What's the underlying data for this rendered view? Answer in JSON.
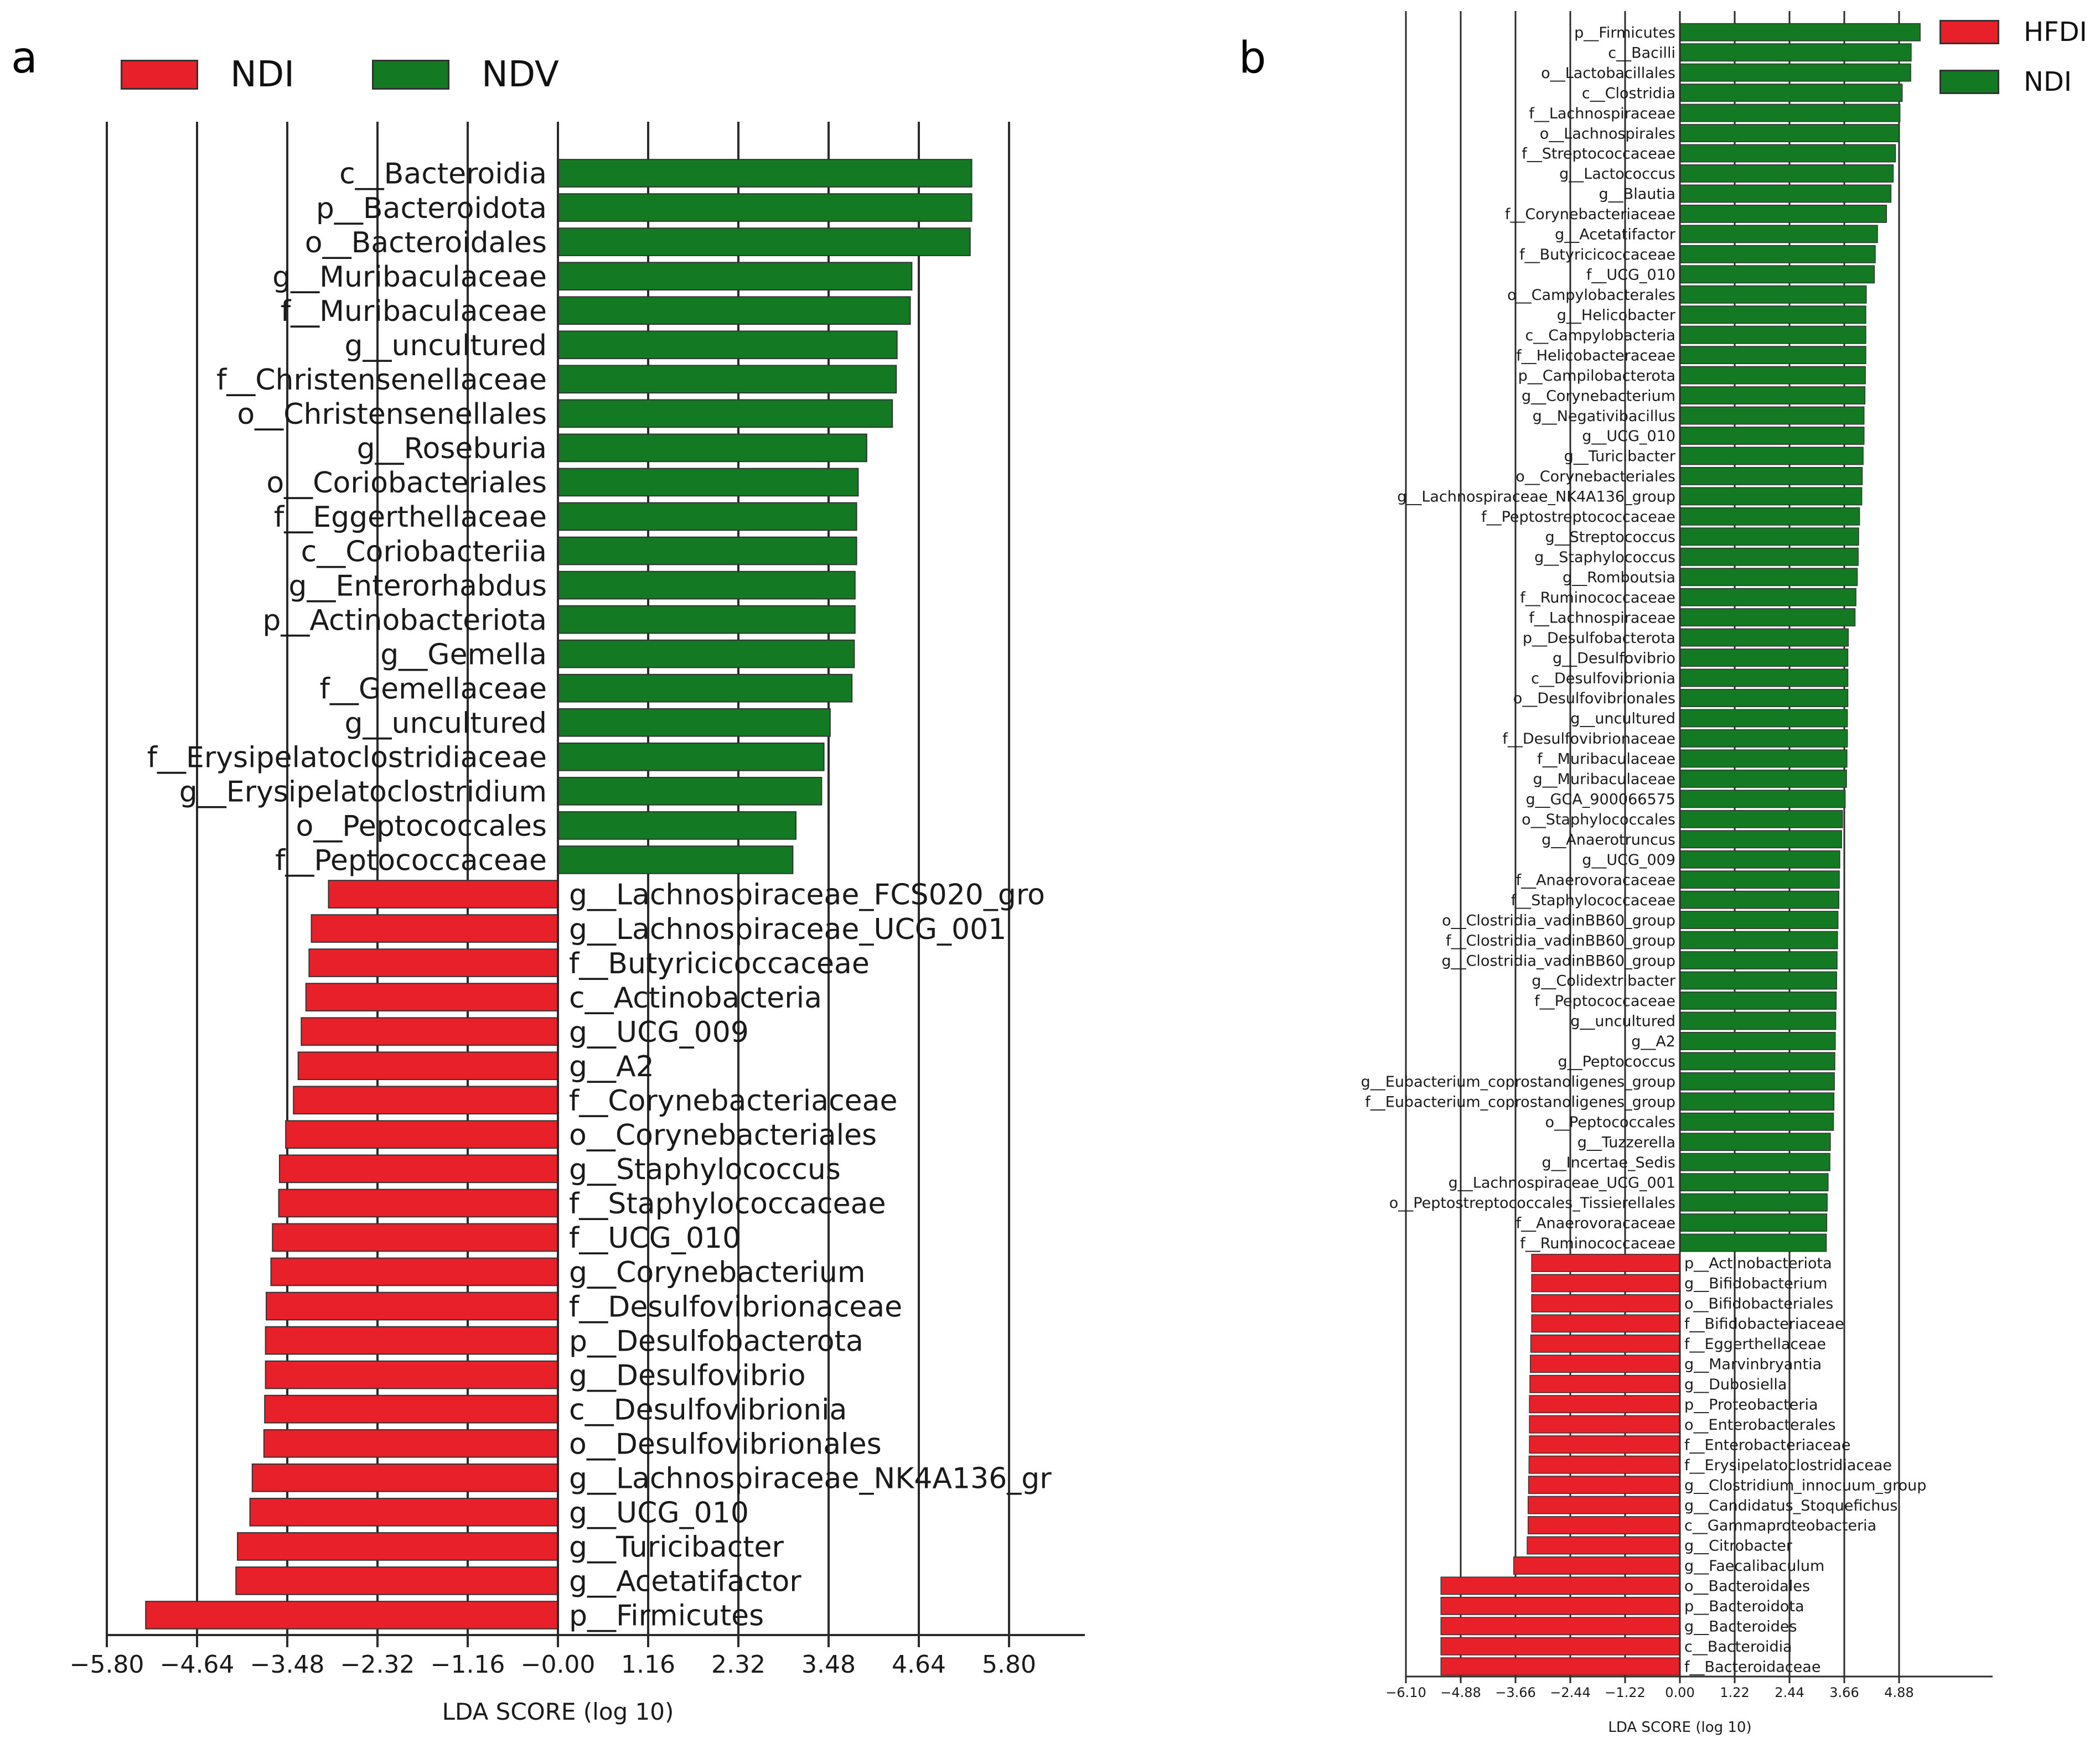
{
  "panels": {
    "a": {
      "letter": "a",
      "legend": [
        {
          "label": "NDI",
          "color": "#e8202a"
        },
        {
          "label": "NDV",
          "color": "#137a23"
        }
      ],
      "xlabel": "LDA SCORE (log 10)",
      "tick_labels": [
        "−5.80",
        "−4.64",
        "−3.48",
        "−2.32",
        "−1.16",
        "−0.00",
        "1.16",
        "2.32",
        "3.48",
        "4.64",
        "5.80"
      ]
    },
    "b": {
      "letter": "b",
      "legend": [
        {
          "label": "HFDI",
          "color": "#e8202a"
        },
        {
          "label": "NDI",
          "color": "#137a23"
        }
      ],
      "xlabel": "LDA SCORE (log 10)",
      "tick_labels": [
        "−6.10",
        "−4.88",
        "−3.66",
        "−2.44",
        "−1.22",
        "0.00",
        "1.22",
        "2.44",
        "3.66",
        "4.88"
      ]
    }
  },
  "chart_data": [
    {
      "type": "bar",
      "orientation": "horizontal",
      "panel": "a",
      "xlabel": "LDA SCORE (log 10)",
      "xlim": [
        -5.8,
        5.8
      ],
      "xticks": [
        -5.8,
        -4.64,
        -3.48,
        -2.32,
        -1.16,
        0,
        1.16,
        2.32,
        3.48,
        4.64,
        5.8
      ],
      "legend": [
        "NDI",
        "NDV"
      ],
      "bars": [
        {
          "label": "c__Bacteroidia",
          "value": 5.32,
          "group": "NDV"
        },
        {
          "label": "p__Bacteroidota",
          "value": 5.32,
          "group": "NDV"
        },
        {
          "label": "o__Bacteroidales",
          "value": 5.3,
          "group": "NDV"
        },
        {
          "label": "g__Muribaculaceae",
          "value": 4.55,
          "group": "NDV"
        },
        {
          "label": "f__Muribaculaceae",
          "value": 4.53,
          "group": "NDV"
        },
        {
          "label": "g__uncultured",
          "value": 4.36,
          "group": "NDV"
        },
        {
          "label": "f__Christensenellaceae",
          "value": 4.35,
          "group": "NDV"
        },
        {
          "label": "o__Christensenellales",
          "value": 4.3,
          "group": "NDV"
        },
        {
          "label": "g__Roseburia",
          "value": 3.97,
          "group": "NDV"
        },
        {
          "label": "o__Coriobacteriales",
          "value": 3.86,
          "group": "NDV"
        },
        {
          "label": "f__Eggerthellaceae",
          "value": 3.84,
          "group": "NDV"
        },
        {
          "label": "c__Coriobacteriia",
          "value": 3.84,
          "group": "NDV"
        },
        {
          "label": "g__Enterorhabdus",
          "value": 3.82,
          "group": "NDV"
        },
        {
          "label": "p__Actinobacteriota",
          "value": 3.82,
          "group": "NDV"
        },
        {
          "label": "g__Gemella",
          "value": 3.81,
          "group": "NDV"
        },
        {
          "label": "f__Gemellaceae",
          "value": 3.78,
          "group": "NDV"
        },
        {
          "label": "g__uncultured",
          "value": 3.5,
          "group": "NDV"
        },
        {
          "label": "f__Erysipelatoclostridiaceae",
          "value": 3.42,
          "group": "NDV"
        },
        {
          "label": "g__Erysipelatoclostridium",
          "value": 3.39,
          "group": "NDV"
        },
        {
          "label": "o__Peptococcales",
          "value": 3.06,
          "group": "NDV"
        },
        {
          "label": "f__Peptococcaceae",
          "value": 3.02,
          "group": "NDV"
        },
        {
          "label": "g__Lachnospiraceae_FCS020_gro",
          "value": -2.95,
          "group": "NDI"
        },
        {
          "label": "g__Lachnospiraceae_UCG_001",
          "value": -3.17,
          "group": "NDI"
        },
        {
          "label": "f__Butyricicoccaceae",
          "value": -3.2,
          "group": "NDI"
        },
        {
          "label": "c__Actinobacteria",
          "value": -3.24,
          "group": "NDI"
        },
        {
          "label": "g__UCG_009",
          "value": -3.3,
          "group": "NDI"
        },
        {
          "label": "g__A2",
          "value": -3.34,
          "group": "NDI"
        },
        {
          "label": "f__Corynebacteriaceae",
          "value": -3.4,
          "group": "NDI"
        },
        {
          "label": "o__Corynebacteriales",
          "value": -3.5,
          "group": "NDI"
        },
        {
          "label": "g__Staphylococcus",
          "value": -3.58,
          "group": "NDI"
        },
        {
          "label": "f__Staphylococcaceae",
          "value": -3.59,
          "group": "NDI"
        },
        {
          "label": "f__UCG_010",
          "value": -3.67,
          "group": "NDI"
        },
        {
          "label": "g__Corynebacterium",
          "value": -3.69,
          "group": "NDI"
        },
        {
          "label": "f__Desulfovibrionaceae",
          "value": -3.75,
          "group": "NDI"
        },
        {
          "label": "p__Desulfobacterota",
          "value": -3.76,
          "group": "NDI"
        },
        {
          "label": "g__Desulfovibrio",
          "value": -3.76,
          "group": "NDI"
        },
        {
          "label": "c__Desulfovibrionia",
          "value": -3.77,
          "group": "NDI"
        },
        {
          "label": "o__Desulfovibrionales",
          "value": -3.78,
          "group": "NDI"
        },
        {
          "label": "g__Lachnospiraceae_NK4A136_gr",
          "value": -3.93,
          "group": "NDI"
        },
        {
          "label": "g__UCG_010",
          "value": -3.96,
          "group": "NDI"
        },
        {
          "label": "g__Turicibacter",
          "value": -4.12,
          "group": "NDI"
        },
        {
          "label": "g__Acetatifactor",
          "value": -4.14,
          "group": "NDI"
        },
        {
          "label": "p__Firmicutes",
          "value": -5.3,
          "group": "NDI"
        }
      ]
    },
    {
      "type": "bar",
      "orientation": "horizontal",
      "panel": "b",
      "xlabel": "LDA SCORE (log 10)",
      "xlim": [
        -6.1,
        6.1
      ],
      "xticks": [
        -6.1,
        -4.88,
        -3.66,
        -2.44,
        -1.22,
        0,
        1.22,
        2.44,
        3.66,
        4.88
      ],
      "legend": [
        "HFDI",
        "NDI"
      ],
      "bars": [
        {
          "label": "p__Firmicutes",
          "value": 5.35,
          "group": "NDI"
        },
        {
          "label": "c__Bacilli",
          "value": 5.15,
          "group": "NDI"
        },
        {
          "label": "o__Lactobacillales",
          "value": 5.14,
          "group": "NDI"
        },
        {
          "label": "c__Clostridia",
          "value": 4.95,
          "group": "NDI"
        },
        {
          "label": "f__Lachnospiraceae",
          "value": 4.9,
          "group": "NDI"
        },
        {
          "label": "o__Lachnospirales",
          "value": 4.88,
          "group": "NDI"
        },
        {
          "label": "f__Streptococcaceae",
          "value": 4.8,
          "group": "NDI"
        },
        {
          "label": "g__Lactococcus",
          "value": 4.75,
          "group": "NDI"
        },
        {
          "label": "g__Blautia",
          "value": 4.7,
          "group": "NDI"
        },
        {
          "label": "f__Corynebacteriaceae",
          "value": 4.6,
          "group": "NDI"
        },
        {
          "label": "g__Acetatifactor",
          "value": 4.4,
          "group": "NDI"
        },
        {
          "label": "f__Butyricicoccaceae",
          "value": 4.35,
          "group": "NDI"
        },
        {
          "label": "f__UCG_010",
          "value": 4.33,
          "group": "NDI"
        },
        {
          "label": "o__Campylobacterales",
          "value": 4.15,
          "group": "NDI"
        },
        {
          "label": "g__Helicobacter",
          "value": 4.14,
          "group": "NDI"
        },
        {
          "label": "c__Campylobacteria",
          "value": 4.14,
          "group": "NDI"
        },
        {
          "label": "f__Helicobacteraceae",
          "value": 4.14,
          "group": "NDI"
        },
        {
          "label": "p__Campilobacterota",
          "value": 4.13,
          "group": "NDI"
        },
        {
          "label": "g__Corynebacterium",
          "value": 4.12,
          "group": "NDI"
        },
        {
          "label": "g__Negativibacillus",
          "value": 4.1,
          "group": "NDI"
        },
        {
          "label": "g__UCG_010",
          "value": 4.1,
          "group": "NDI"
        },
        {
          "label": "g__Turicibacter",
          "value": 4.08,
          "group": "NDI"
        },
        {
          "label": "o__Corynebacteriales",
          "value": 4.06,
          "group": "NDI"
        },
        {
          "label": "g__Lachnospiraceae_NK4A136_group",
          "value": 4.05,
          "group": "NDI"
        },
        {
          "label": "f__Peptostreptococcaceae",
          "value": 4.0,
          "group": "NDI"
        },
        {
          "label": "g__Streptococcus",
          "value": 3.98,
          "group": "NDI"
        },
        {
          "label": "g__Staphylococcus",
          "value": 3.97,
          "group": "NDI"
        },
        {
          "label": "g__Romboutsia",
          "value": 3.95,
          "group": "NDI"
        },
        {
          "label": "f__Ruminococcaceae",
          "value": 3.92,
          "group": "NDI"
        },
        {
          "label": "f__Lachnospiraceae",
          "value": 3.9,
          "group": "NDI"
        },
        {
          "label": "p__Desulfobacterota",
          "value": 3.75,
          "group": "NDI"
        },
        {
          "label": "g__Desulfovibrio",
          "value": 3.74,
          "group": "NDI"
        },
        {
          "label": "c__Desulfovibrionia",
          "value": 3.74,
          "group": "NDI"
        },
        {
          "label": "o__Desulfovibrionales",
          "value": 3.74,
          "group": "NDI"
        },
        {
          "label": "g__uncultured",
          "value": 3.73,
          "group": "NDI"
        },
        {
          "label": "f__Desulfovibrionaceae",
          "value": 3.73,
          "group": "NDI"
        },
        {
          "label": "f__Muribaculaceae",
          "value": 3.72,
          "group": "NDI"
        },
        {
          "label": "g__Muribaculaceae",
          "value": 3.71,
          "group": "NDI"
        },
        {
          "label": "g__GCA_900066575",
          "value": 3.68,
          "group": "NDI"
        },
        {
          "label": "o__Staphylococcales",
          "value": 3.62,
          "group": "NDI"
        },
        {
          "label": "g__Anaerotruncus",
          "value": 3.6,
          "group": "NDI"
        },
        {
          "label": "g__UCG_009",
          "value": 3.56,
          "group": "NDI"
        },
        {
          "label": "f__Anaerovoracaceae",
          "value": 3.55,
          "group": "NDI"
        },
        {
          "label": "f__Staphylococcaceae",
          "value": 3.54,
          "group": "NDI"
        },
        {
          "label": "o__Clostridia_vadinBB60_group",
          "value": 3.52,
          "group": "NDI"
        },
        {
          "label": "f__Clostridia_vadinBB60_group",
          "value": 3.51,
          "group": "NDI"
        },
        {
          "label": "g__Clostridia_vadinBB60_group",
          "value": 3.5,
          "group": "NDI"
        },
        {
          "label": "g__Colidextribacter",
          "value": 3.49,
          "group": "NDI"
        },
        {
          "label": "f__Peptococcaceae",
          "value": 3.48,
          "group": "NDI"
        },
        {
          "label": "g__uncultured",
          "value": 3.47,
          "group": "NDI"
        },
        {
          "label": "g__A2",
          "value": 3.46,
          "group": "NDI"
        },
        {
          "label": "g__Peptococcus",
          "value": 3.45,
          "group": "NDI"
        },
        {
          "label": "g__Eubacterium_coprostanoligenes_group",
          "value": 3.44,
          "group": "NDI"
        },
        {
          "label": "f__Eubacterium_coprostanoligenes_group",
          "value": 3.43,
          "group": "NDI"
        },
        {
          "label": "o__Peptococcales",
          "value": 3.42,
          "group": "NDI"
        },
        {
          "label": "g__Tuzzerella",
          "value": 3.35,
          "group": "NDI"
        },
        {
          "label": "g__Incertae_Sedis",
          "value": 3.34,
          "group": "NDI"
        },
        {
          "label": "g__Lachnospiraceae_UCG_001",
          "value": 3.3,
          "group": "NDI"
        },
        {
          "label": "o__Peptostreptococcales_Tissierellales",
          "value": 3.28,
          "group": "NDI"
        },
        {
          "label": "f__Anaerovoracaceae",
          "value": 3.27,
          "group": "NDI"
        },
        {
          "label": "f__Ruminococcaceae",
          "value": 3.26,
          "group": "NDI"
        },
        {
          "label": "p__Actinobacteriota",
          "value": -3.3,
          "group": "HFDI"
        },
        {
          "label": "g__Bifidobacterium",
          "value": -3.3,
          "group": "HFDI"
        },
        {
          "label": "o__Bifidobacteriales",
          "value": -3.3,
          "group": "HFDI"
        },
        {
          "label": "f__Bifidobacteriaceae",
          "value": -3.3,
          "group": "HFDI"
        },
        {
          "label": "f__Eggerthellaceae",
          "value": -3.32,
          "group": "HFDI"
        },
        {
          "label": "g__Marvinbryantia",
          "value": -3.33,
          "group": "HFDI"
        },
        {
          "label": "g__Dubosiella",
          "value": -3.34,
          "group": "HFDI"
        },
        {
          "label": "p__Proteobacteria",
          "value": -3.35,
          "group": "HFDI"
        },
        {
          "label": "o__Enterobacterales",
          "value": -3.35,
          "group": "HFDI"
        },
        {
          "label": "f__Enterobacteriaceae",
          "value": -3.35,
          "group": "HFDI"
        },
        {
          "label": "f__Erysipelatoclostridiaceae",
          "value": -3.36,
          "group": "HFDI"
        },
        {
          "label": "g__Clostridium_innocuum_group",
          "value": -3.37,
          "group": "HFDI"
        },
        {
          "label": "g__Candidatus_Stoquefichus",
          "value": -3.38,
          "group": "HFDI"
        },
        {
          "label": "c__Gammaproteobacteria",
          "value": -3.38,
          "group": "HFDI"
        },
        {
          "label": "g__Citrobacter",
          "value": -3.4,
          "group": "HFDI"
        },
        {
          "label": "g__Faecalibaculum",
          "value": -3.7,
          "group": "HFDI"
        },
        {
          "label": "o__Bacteroidales",
          "value": -5.32,
          "group": "HFDI"
        },
        {
          "label": "p__Bacteroidota",
          "value": -5.32,
          "group": "HFDI"
        },
        {
          "label": "g__Bacteroides",
          "value": -5.32,
          "group": "HFDI"
        },
        {
          "label": "c__Bacteroidia",
          "value": -5.32,
          "group": "HFDI"
        },
        {
          "label": "f__Bacteroidaceae",
          "value": -5.32,
          "group": "HFDI"
        }
      ]
    }
  ]
}
